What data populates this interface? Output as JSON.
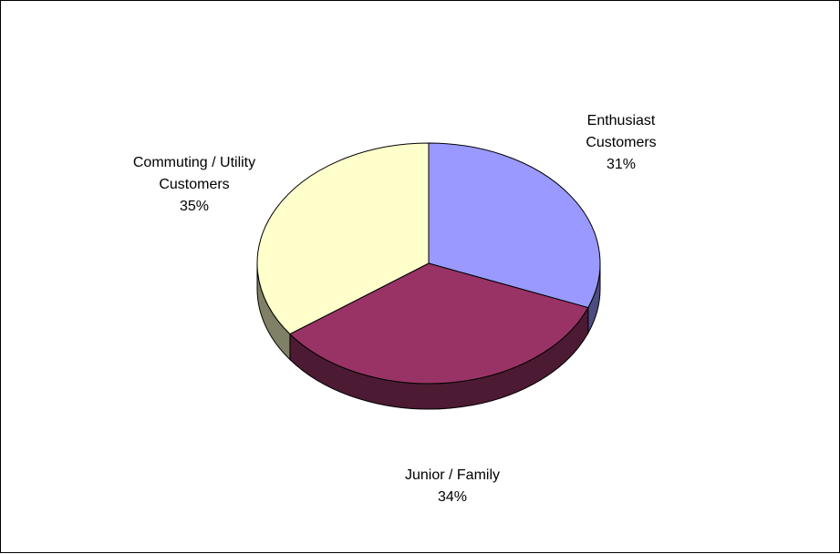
{
  "chart_data": {
    "type": "pie",
    "title": "",
    "slices": [
      {
        "label_lines": [
          "Enthusiast",
          "Customers"
        ],
        "value": 31,
        "value_label": "31%",
        "color": "#9999FF",
        "side_color": "#4C4C80"
      },
      {
        "label_lines": [
          "Junior / Family"
        ],
        "value": 34,
        "value_label": "34%",
        "color": "#993366",
        "side_color": "#4D1A33"
      },
      {
        "label_lines": [
          "Commuting / Utility",
          "Customers"
        ],
        "value": 35,
        "value_label": "35%",
        "color": "#FFFFCC",
        "side_color": "#808066"
      }
    ]
  }
}
